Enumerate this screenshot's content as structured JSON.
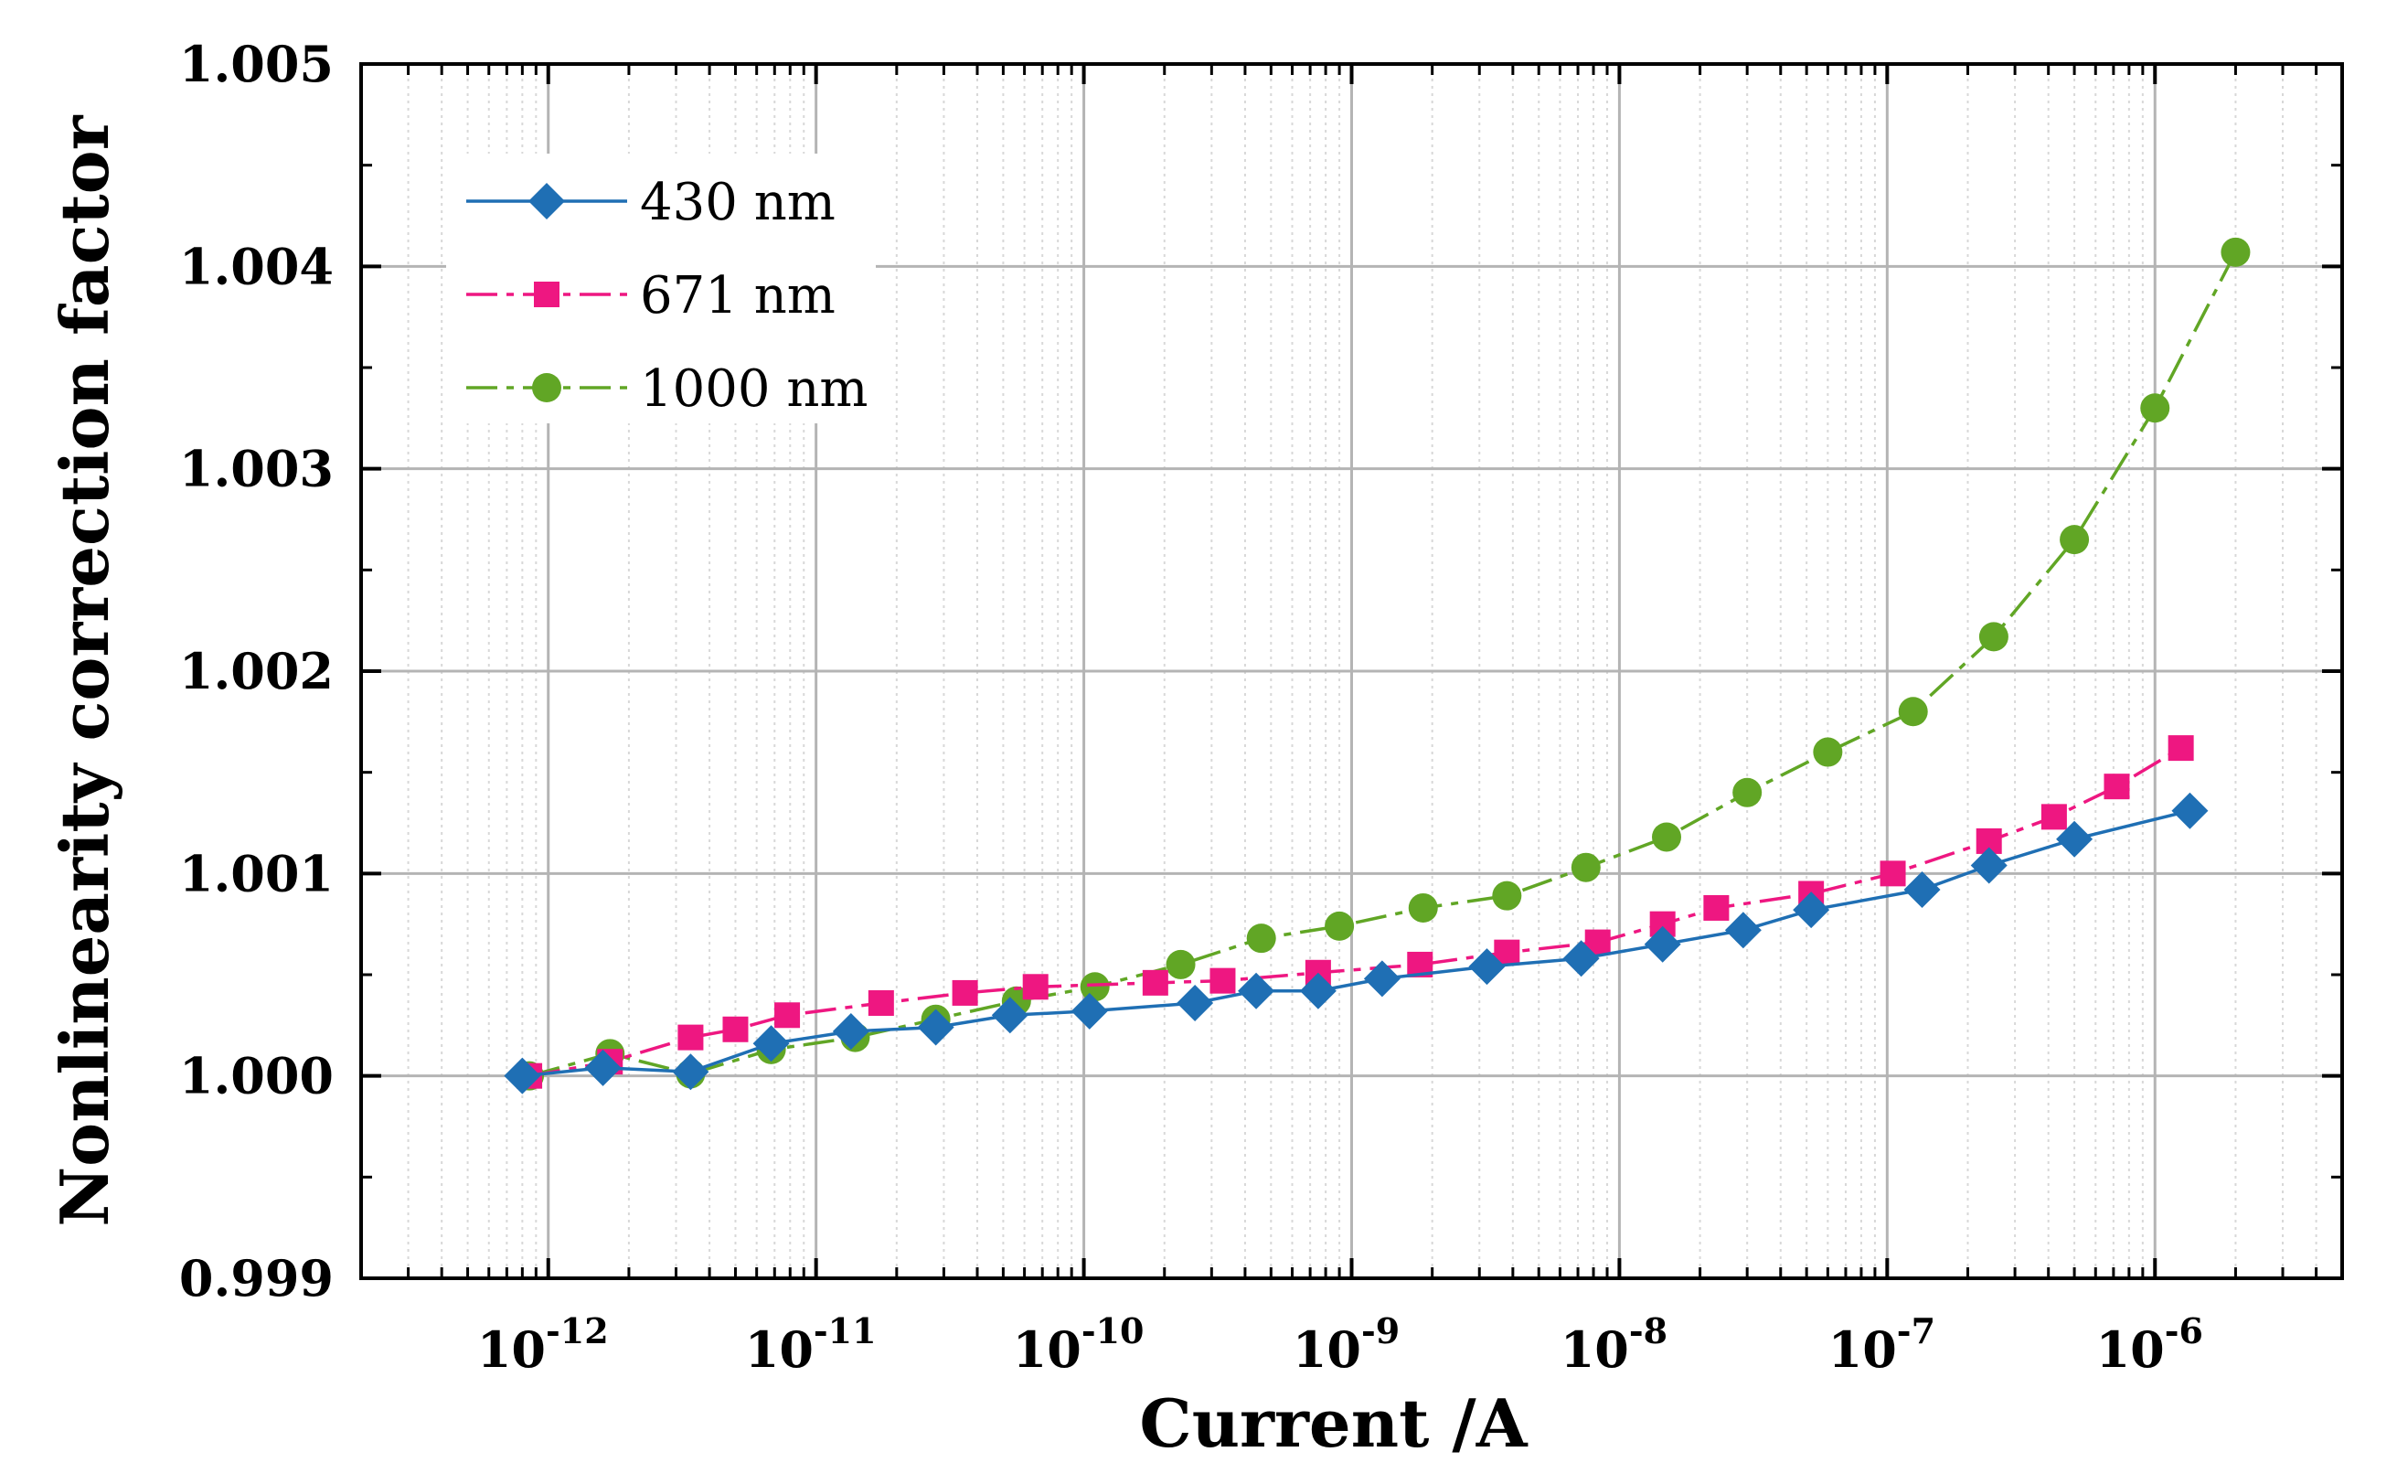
{
  "chart_data": {
    "type": "line",
    "title": "",
    "xlabel": "Current /A",
    "ylabel": "Nonlinearity correction factor",
    "xscale": "log",
    "xlim": [
      2e-13,
      5e-06
    ],
    "ylim": [
      0.999,
      1.005
    ],
    "grid": true,
    "legend_position": "top-left",
    "x_ticks": [
      {
        "value": 1e-12,
        "base": "10",
        "exp": "-12"
      },
      {
        "value": 1e-11,
        "base": "10",
        "exp": "-11"
      },
      {
        "value": 1e-10,
        "base": "10",
        "exp": "-10"
      },
      {
        "value": 1e-09,
        "base": "10",
        "exp": "-9"
      },
      {
        "value": 1e-08,
        "base": "10",
        "exp": "-8"
      },
      {
        "value": 1e-07,
        "base": "10",
        "exp": "-7"
      },
      {
        "value": 1e-06,
        "base": "10",
        "exp": "-6"
      }
    ],
    "y_ticks": [
      {
        "value": 0.999,
        "label": "0.999"
      },
      {
        "value": 1.0,
        "label": "1.000"
      },
      {
        "value": 1.001,
        "label": "1.001"
      },
      {
        "value": 1.002,
        "label": "1.002"
      },
      {
        "value": 1.003,
        "label": "1.003"
      },
      {
        "value": 1.004,
        "label": "1.004"
      },
      {
        "value": 1.005,
        "label": "1.005"
      }
    ],
    "series": [
      {
        "name": "430 nm",
        "color": "#1f6fb4",
        "marker": "diamond",
        "x": [
          8e-13,
          1.6e-12,
          3.4e-12,
          6.8e-12,
          1.35e-11,
          2.8e-11,
          5.3e-11,
          1.05e-10,
          2.6e-10,
          4.4e-10,
          7.5e-10,
          1.3e-09,
          3.2e-09,
          7.2e-09,
          1.45e-08,
          2.9e-08,
          5.2e-08,
          1.35e-07,
          2.4e-07,
          5e-07,
          1.35e-06
        ],
        "y": [
          1.0,
          1.00004,
          1.00002,
          1.00016,
          1.00022,
          1.00024,
          1.0003,
          1.00032,
          1.00036,
          1.00042,
          1.00042,
          1.00048,
          1.00054,
          1.00058,
          1.00065,
          1.00072,
          1.00082,
          1.00092,
          1.00104,
          1.00117,
          1.00131
        ]
      },
      {
        "name": "671 nm",
        "color": "#ee1781",
        "marker": "square",
        "x": [
          8.5e-13,
          1.7e-12,
          3.4e-12,
          5e-12,
          7.8e-12,
          1.75e-11,
          3.6e-11,
          6.6e-11,
          1.85e-10,
          3.3e-10,
          7.5e-10,
          1.8e-09,
          3.8e-09,
          8.3e-09,
          1.45e-08,
          2.3e-08,
          5.2e-08,
          1.05e-07,
          2.4e-07,
          4.2e-07,
          7.2e-07,
          1.25e-06
        ],
        "y": [
          1.0,
          1.00007,
          1.00019,
          1.00023,
          1.0003,
          1.00036,
          1.00041,
          1.00044,
          1.00046,
          1.00047,
          1.00051,
          1.00055,
          1.00061,
          1.00066,
          1.00075,
          1.00083,
          1.0009,
          1.001,
          1.00116,
          1.00128,
          1.00143,
          1.00162
        ]
      },
      {
        "name": "1000 nm",
        "color": "#61a625",
        "marker": "circle",
        "x": [
          8.5e-13,
          1.7e-12,
          3.4e-12,
          6.8e-12,
          1.4e-11,
          2.8e-11,
          5.6e-11,
          1.1e-10,
          2.3e-10,
          4.6e-10,
          9e-10,
          1.85e-09,
          3.8e-09,
          7.5e-09,
          1.5e-08,
          3e-08,
          6e-08,
          1.25e-07,
          2.5e-07,
          5e-07,
          1e-06,
          2e-06
        ],
        "y": [
          1.0,
          1.00011,
          1.00001,
          1.00013,
          1.00019,
          1.00028,
          1.00037,
          1.00044,
          1.00055,
          1.00068,
          1.00074,
          1.00083,
          1.00089,
          1.00103,
          1.00118,
          1.0014,
          1.0016,
          1.0018,
          1.00217,
          1.00265,
          1.0033,
          1.00407
        ]
      }
    ]
  }
}
